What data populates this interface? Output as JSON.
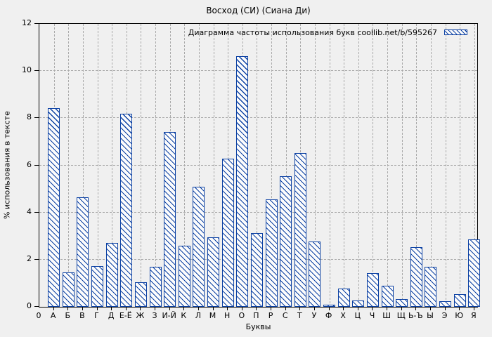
{
  "chart_data": {
    "type": "bar",
    "title": "Восход (СИ) (Сиана Ди)",
    "legend": "Диаграмма частоты использования букв coollib.net/b/595267",
    "legend_position": "top-right-inside",
    "xlabel": "Буквы",
    "ylabel": "% использования в тексте",
    "origin_label": "0",
    "categories": [
      "А",
      "Б",
      "В",
      "Г",
      "Д",
      "Е-Ё",
      "Ж",
      "З",
      "И-Й",
      "К",
      "Л",
      "М",
      "Н",
      "О",
      "П",
      "Р",
      "С",
      "Т",
      "У",
      "Ф",
      "Х",
      "Ц",
      "Ч",
      "Ш",
      "Щ",
      "Ь-Ъ",
      "Ы",
      "Э",
      "Ю",
      "Я"
    ],
    "values": [
      8.44,
      1.45,
      4.64,
      1.74,
      2.71,
      8.18,
      1.05,
      1.7,
      7.4,
      2.59,
      5.08,
      2.95,
      6.28,
      10.63,
      3.13,
      4.57,
      5.54,
      6.53,
      2.76,
      0.1,
      0.78,
      0.26,
      1.42,
      0.9,
      0.33,
      2.53,
      1.7,
      0.24,
      0.53,
      2.85
    ],
    "ylim": [
      0,
      12
    ],
    "yticks": [
      0,
      2,
      4,
      6,
      8,
      10,
      12
    ],
    "grid": true,
    "hatch": "backslash-diagonal",
    "colors": {
      "bar": "#0c41a3",
      "bar_fill": "#fcfcfc",
      "background": "#f0f0f0",
      "grid": "#a9a9a9",
      "axis": "#000000",
      "text": "#000000"
    }
  }
}
